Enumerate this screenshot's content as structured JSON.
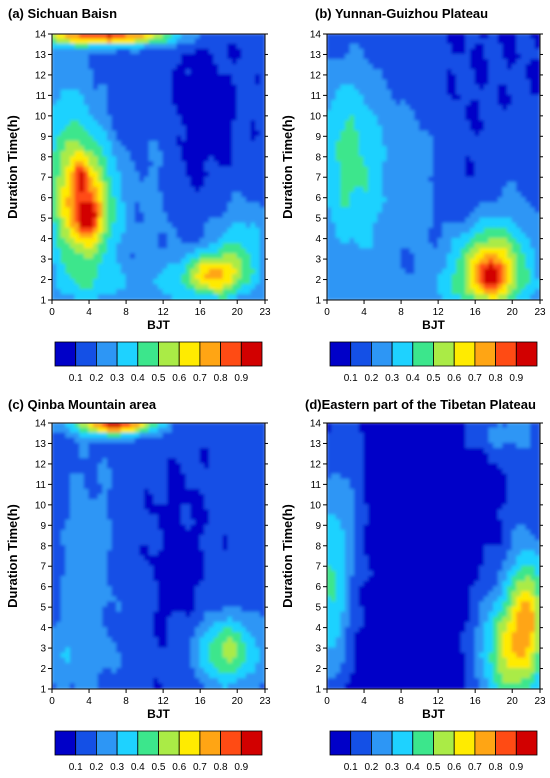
{
  "figure": {
    "ylabel": "Duration  Time(h)",
    "xlabel": "BJT",
    "x_ticks": [
      "0",
      "4",
      "8",
      "12",
      "16",
      "20",
      "23"
    ],
    "y_ticks": [
      "1",
      "2",
      "3",
      "4",
      "5",
      "6",
      "7",
      "8",
      "9",
      "10",
      "11",
      "12",
      "13",
      "14"
    ],
    "colorbar_labels": [
      "0.1",
      "0.2",
      "0.3",
      "0.4",
      "0.5",
      "0.6",
      "0.7",
      "0.8",
      "0.9"
    ],
    "colorbar_colors": [
      "#0000c8",
      "#1450e6",
      "#2d96f5",
      "#1ed2ff",
      "#3ce68c",
      "#aaeb46",
      "#ffeb00",
      "#ffa514",
      "#ff4b14",
      "#d20000"
    ]
  },
  "panels": [
    {
      "title": "(a) Sichuan Baisn"
    },
    {
      "title": "(b) Yunnan-Guizhou Plateau"
    },
    {
      "title": "(c) Qinba Mountain area"
    },
    {
      "title": "(d)Eastern part of the Tibetan Plateau"
    }
  ],
  "chart_data": [
    {
      "type": "heatmap",
      "title": "(a) Sichuan Baisn",
      "xlabel": "BJT",
      "ylabel": "Duration  Time(h)",
      "xlim": [
        0,
        23
      ],
      "ylim": [
        1,
        14
      ],
      "zlim": [
        0,
        1
      ],
      "color_levels": [
        0.1,
        0.2,
        0.3,
        0.4,
        0.5,
        0.6,
        0.7,
        0.8,
        0.9
      ],
      "background": 0.13,
      "features": [
        {
          "x": 3.5,
          "y": 5.5,
          "sx": 2.6,
          "sy": 2.3,
          "amp": 0.6
        },
        {
          "x": 4.0,
          "y": 5.0,
          "sx": 0.8,
          "sy": 0.6,
          "amp": 0.35
        },
        {
          "x": 3.2,
          "y": 7.0,
          "sx": 0.5,
          "sy": 0.6,
          "amp": 0.25
        },
        {
          "x": 1.5,
          "y": 9.5,
          "sx": 2.5,
          "sy": 2.8,
          "amp": 0.18
        },
        {
          "x": 17.5,
          "y": 2.2,
          "sx": 2.5,
          "sy": 0.8,
          "amp": 0.5
        },
        {
          "x": 20.5,
          "y": 3.8,
          "sx": 2.5,
          "sy": 1.5,
          "amp": 0.22
        },
        {
          "x": 6.0,
          "y": 13.9,
          "sx": 5.0,
          "sy": 0.35,
          "amp": 0.75
        },
        {
          "x": 6.0,
          "y": 1.6,
          "sx": 9.0,
          "sy": 0.8,
          "amp": 0.12
        },
        {
          "x": 11.5,
          "y": 6.5,
          "sx": 1.8,
          "sy": 5.0,
          "amp": 0.1
        },
        {
          "x": 15.0,
          "y": 10.0,
          "sx": 3.5,
          "sy": 3.0,
          "amp": -0.08
        }
      ]
    },
    {
      "type": "heatmap",
      "title": "(b) Yunnan-Guizhou Plateau",
      "xlabel": "BJT",
      "ylabel": "Duration  Time(h)",
      "xlim": [
        0,
        23
      ],
      "ylim": [
        1,
        14
      ],
      "zlim": [
        0,
        1
      ],
      "color_levels": [
        0.1,
        0.2,
        0.3,
        0.4,
        0.5,
        0.6,
        0.7,
        0.8,
        0.9
      ],
      "background": 0.1,
      "features": [
        {
          "x": 3.0,
          "y": 6.5,
          "sx": 3.5,
          "sy": 3.5,
          "amp": 0.28
        },
        {
          "x": 2.0,
          "y": 10.0,
          "sx": 2.5,
          "sy": 2.5,
          "amp": 0.12
        },
        {
          "x": 17.5,
          "y": 2.5,
          "sx": 3.0,
          "sy": 1.5,
          "amp": 0.55
        },
        {
          "x": 17.8,
          "y": 2.2,
          "sx": 1.0,
          "sy": 0.6,
          "amp": 0.3
        },
        {
          "x": 10.0,
          "y": 7.0,
          "sx": 2.0,
          "sy": 3.5,
          "amp": 0.1
        },
        {
          "x": 20.5,
          "y": 5.0,
          "sx": 2.5,
          "sy": 3.0,
          "amp": 0.1
        },
        {
          "x": 11.5,
          "y": 1.5,
          "sx": 10.0,
          "sy": 0.6,
          "amp": 0.1
        }
      ]
    },
    {
      "type": "heatmap",
      "title": "(c) Qinba Mountain area",
      "xlabel": "BJT",
      "ylabel": "Duration  Time(h)",
      "xlim": [
        0,
        23
      ],
      "ylim": [
        1,
        14
      ],
      "zlim": [
        0,
        1
      ],
      "color_levels": [
        0.1,
        0.2,
        0.3,
        0.4,
        0.5,
        0.6,
        0.7,
        0.8,
        0.9
      ],
      "background": 0.13,
      "features": [
        {
          "x": 19.0,
          "y": 2.8,
          "sx": 2.5,
          "sy": 1.2,
          "amp": 0.4
        },
        {
          "x": 7.0,
          "y": 13.9,
          "sx": 3.0,
          "sy": 0.35,
          "amp": 0.75
        },
        {
          "x": 4.0,
          "y": 7.0,
          "sx": 3.5,
          "sy": 5.5,
          "amp": 0.1
        },
        {
          "x": 2.0,
          "y": 2.5,
          "sx": 2.5,
          "sy": 1.0,
          "amp": 0.1
        },
        {
          "x": 13.0,
          "y": 7.0,
          "sx": 3.0,
          "sy": 4.0,
          "amp": -0.06
        }
      ]
    },
    {
      "type": "heatmap",
      "title": "(d)Eastern part of the Tibetan Plateau",
      "xlabel": "BJT",
      "ylabel": "Duration  Time(h)",
      "xlim": [
        0,
        23
      ],
      "ylim": [
        1,
        14
      ],
      "zlim": [
        0,
        1
      ],
      "color_levels": [
        0.1,
        0.2,
        0.3,
        0.4,
        0.5,
        0.6,
        0.7,
        0.8,
        0.9
      ],
      "background": 0.05,
      "features": [
        {
          "x": 20.0,
          "y": 2.8,
          "sx": 2.5,
          "sy": 2.2,
          "amp": 0.55
        },
        {
          "x": 21.8,
          "y": 5.0,
          "sx": 1.2,
          "sy": 1.8,
          "amp": 0.35
        },
        {
          "x": 0.3,
          "y": 6.0,
          "sx": 1.5,
          "sy": 3.5,
          "amp": 0.35
        },
        {
          "x": 2.5,
          "y": 9.5,
          "sx": 1.5,
          "sy": 3.5,
          "amp": 0.1
        },
        {
          "x": 21.5,
          "y": 9.0,
          "sx": 2.0,
          "sy": 4.0,
          "amp": 0.12
        },
        {
          "x": 19.0,
          "y": 13.5,
          "sx": 3.0,
          "sy": 0.8,
          "amp": 0.15
        }
      ]
    }
  ]
}
